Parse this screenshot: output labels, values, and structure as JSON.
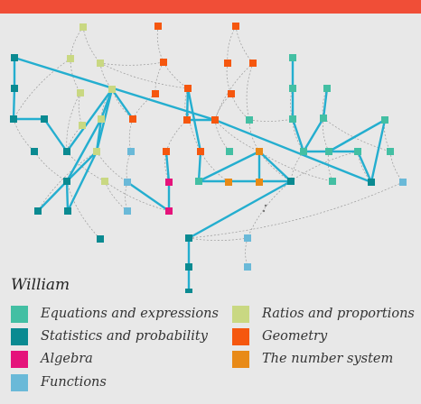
{
  "header": {
    "bar_color": "#f04e37"
  },
  "graph": {
    "edge_colors": {
      "highlight": "#24aecf",
      "faint": "#9a9a9a"
    },
    "categories": {
      "equations": "#43bfa3",
      "statistics": "#0a8a91",
      "algebra": "#e5137b",
      "functions": "#6ab9d8",
      "ratios": "#c9d882",
      "geometry": "#f5570f",
      "number_system": "#e88a17"
    }
  },
  "legend": {
    "title": "William",
    "items": [
      {
        "label": "Equations and expressions",
        "color": "#43bfa3",
        "icon": "square-swatch"
      },
      {
        "label": "Statistics and probability",
        "color": "#0a8a91",
        "icon": "square-swatch"
      },
      {
        "label": "Algebra",
        "color": "#e5137b",
        "icon": "square-swatch"
      },
      {
        "label": "Functions",
        "color": "#6ab9d8",
        "icon": "square-swatch"
      },
      {
        "label": "Ratios and proportions",
        "color": "#c9d882",
        "icon": "square-swatch"
      },
      {
        "label": "Geometry",
        "color": "#f5570f",
        "icon": "square-swatch"
      },
      {
        "label": "The number system",
        "color": "#e88a17",
        "icon": "square-swatch"
      }
    ]
  }
}
